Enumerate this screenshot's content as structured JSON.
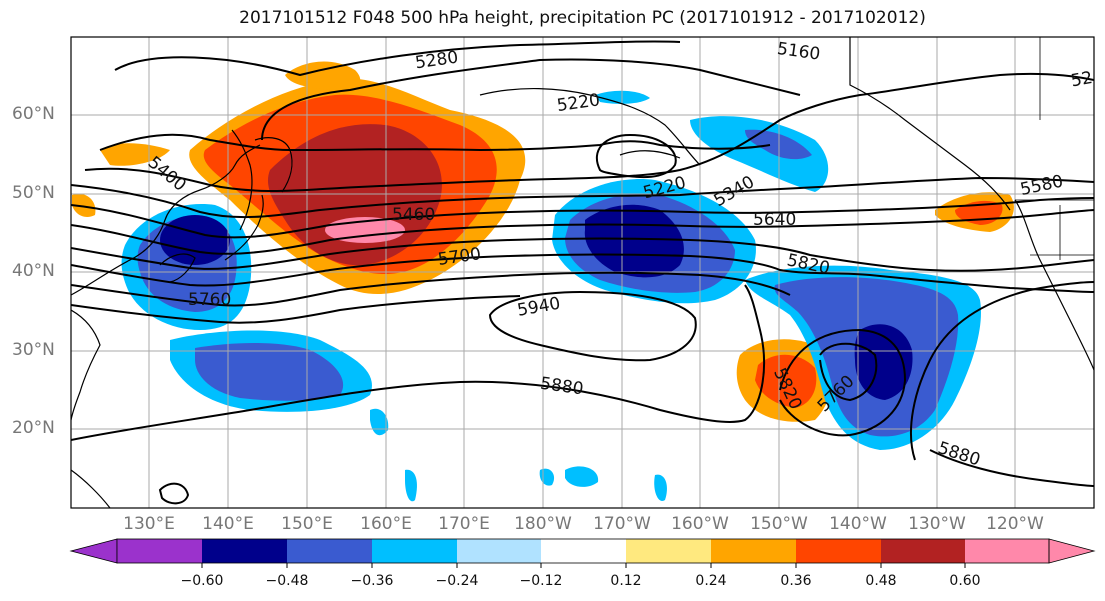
{
  "title": "2017101512 F048 500 hPa height, precipitation PC (2017101912 - 2017102012)",
  "lat_labels": [
    "60°N",
    "50°N",
    "40°N",
    "30°N",
    "20°N"
  ],
  "lon_labels": [
    "130°E",
    "140°E",
    "150°E",
    "160°E",
    "170°E",
    "180°W",
    "170°W",
    "160°W",
    "150°W",
    "140°W",
    "130°W",
    "120°W"
  ],
  "contour_labels": [
    "5280",
    "5160",
    "5220",
    "5400",
    "5460",
    "5580",
    "5640",
    "5700",
    "5760",
    "5820",
    "5940",
    "5880",
    "5340",
    "5220",
    "5820",
    "5760",
    "5880",
    "52"
  ],
  "colorbar": {
    "colors": [
      "#9b32cc",
      "#00008b",
      "#3a5bd0",
      "#00bfff",
      "#b0e2ff",
      "#ffffff",
      "#ffe97f",
      "#ffa500",
      "#ff4500",
      "#b22222",
      "#ff88aa"
    ],
    "ticks": [
      "−0.60",
      "−0.48",
      "−0.36",
      "−0.24",
      "−0.12",
      "0.12",
      "0.24",
      "0.36",
      "0.48",
      "0.60"
    ]
  }
}
